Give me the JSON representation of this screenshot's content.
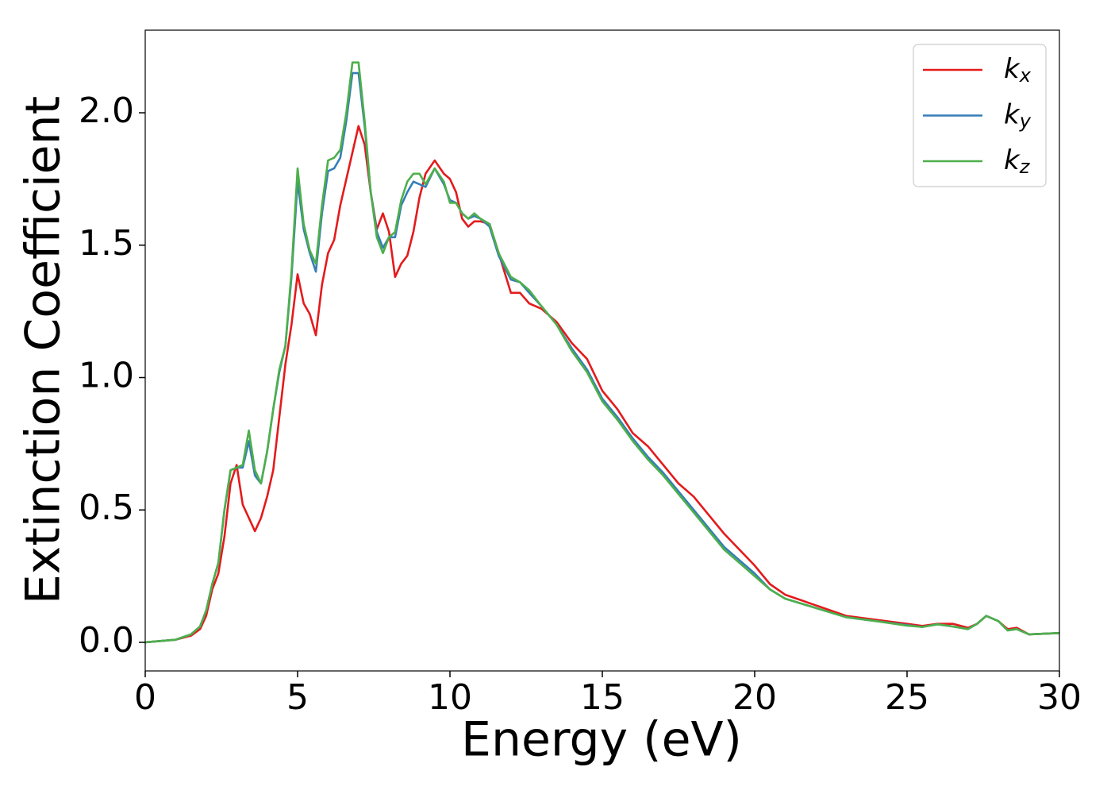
{
  "chart_data": {
    "type": "line",
    "xlabel": "Energy (eV)",
    "ylabel": "Extinction Coefficient",
    "x": [
      0,
      1,
      1.5,
      1.8,
      2,
      2.2,
      2.4,
      2.6,
      2.8,
      3,
      3.2,
      3.4,
      3.6,
      3.8,
      4,
      4.2,
      4.4,
      4.6,
      4.8,
      5,
      5.2,
      5.4,
      5.6,
      5.8,
      6,
      6.2,
      6.4,
      6.6,
      6.8,
      7,
      7.2,
      7.4,
      7.6,
      7.8,
      8,
      8.2,
      8.4,
      8.6,
      8.8,
      9,
      9.2,
      9.5,
      9.8,
      10,
      10.2,
      10.4,
      10.6,
      10.8,
      11,
      11.3,
      11.6,
      12,
      12.3,
      12.6,
      13,
      13.5,
      14,
      14.5,
      15,
      15.5,
      16,
      16.5,
      17,
      17.5,
      18,
      18.5,
      19,
      19.5,
      20,
      20.5,
      21,
      22,
      23,
      24,
      25,
      25.5,
      26,
      26.5,
      27,
      27.3,
      27.6,
      28,
      28.3,
      28.6,
      29,
      30
    ],
    "series": [
      {
        "name": "kx",
        "color": "#e41a1c",
        "values": [
          0,
          0.01,
          0.025,
          0.05,
          0.1,
          0.2,
          0.26,
          0.4,
          0.6,
          0.67,
          0.52,
          0.47,
          0.42,
          0.47,
          0.55,
          0.65,
          0.85,
          1.05,
          1.2,
          1.39,
          1.28,
          1.24,
          1.16,
          1.35,
          1.47,
          1.52,
          1.65,
          1.75,
          1.85,
          1.95,
          1.88,
          1.7,
          1.56,
          1.62,
          1.55,
          1.38,
          1.43,
          1.46,
          1.55,
          1.68,
          1.77,
          1.82,
          1.77,
          1.75,
          1.7,
          1.6,
          1.57,
          1.59,
          1.59,
          1.58,
          1.47,
          1.32,
          1.32,
          1.28,
          1.26,
          1.21,
          1.13,
          1.07,
          0.95,
          0.88,
          0.79,
          0.74,
          0.67,
          0.6,
          0.55,
          0.48,
          0.41,
          0.35,
          0.29,
          0.22,
          0.18,
          0.14,
          0.1,
          0.085,
          0.07,
          0.062,
          0.07,
          0.07,
          0.055,
          0.07,
          0.1,
          0.08,
          0.05,
          0.055,
          0.03,
          0.035
        ]
      },
      {
        "name": "ky",
        "color": "#377eb8",
        "values": [
          0,
          0.01,
          0.03,
          0.06,
          0.12,
          0.22,
          0.3,
          0.5,
          0.65,
          0.66,
          0.66,
          0.76,
          0.63,
          0.6,
          0.72,
          0.88,
          1.02,
          1.12,
          1.38,
          1.74,
          1.56,
          1.47,
          1.4,
          1.62,
          1.78,
          1.79,
          1.83,
          1.97,
          2.15,
          2.15,
          1.95,
          1.7,
          1.55,
          1.49,
          1.53,
          1.53,
          1.65,
          1.7,
          1.74,
          1.73,
          1.72,
          1.79,
          1.73,
          1.67,
          1.66,
          1.62,
          1.6,
          1.61,
          1.6,
          1.57,
          1.46,
          1.37,
          1.36,
          1.32,
          1.27,
          1.2,
          1.11,
          1.03,
          0.92,
          0.85,
          0.77,
          0.7,
          0.64,
          0.57,
          0.5,
          0.43,
          0.36,
          0.31,
          0.26,
          0.2,
          0.165,
          0.13,
          0.095,
          0.08,
          0.065,
          0.058,
          0.068,
          0.06,
          0.05,
          0.07,
          0.1,
          0.08,
          0.045,
          0.05,
          0.03,
          0.035
        ]
      },
      {
        "name": "kz",
        "color": "#4daf4a",
        "values": [
          0,
          0.01,
          0.03,
          0.06,
          0.12,
          0.22,
          0.3,
          0.5,
          0.65,
          0.66,
          0.67,
          0.8,
          0.65,
          0.6,
          0.72,
          0.88,
          1.03,
          1.12,
          1.4,
          1.79,
          1.58,
          1.48,
          1.43,
          1.65,
          1.82,
          1.83,
          1.86,
          2.0,
          2.19,
          2.19,
          1.97,
          1.7,
          1.53,
          1.47,
          1.53,
          1.55,
          1.67,
          1.74,
          1.77,
          1.77,
          1.73,
          1.79,
          1.74,
          1.66,
          1.66,
          1.62,
          1.6,
          1.62,
          1.6,
          1.58,
          1.47,
          1.38,
          1.36,
          1.33,
          1.27,
          1.2,
          1.1,
          1.02,
          0.91,
          0.84,
          0.76,
          0.69,
          0.63,
          0.56,
          0.49,
          0.42,
          0.35,
          0.3,
          0.25,
          0.2,
          0.165,
          0.13,
          0.095,
          0.08,
          0.063,
          0.058,
          0.068,
          0.06,
          0.05,
          0.07,
          0.1,
          0.08,
          0.045,
          0.05,
          0.03,
          0.035
        ]
      }
    ],
    "xlim": [
      0,
      30
    ],
    "xticks": [
      0,
      5,
      10,
      15,
      20,
      25,
      30
    ],
    "ylim": [
      -0.108,
      2.312
    ],
    "yticks": [
      {
        "value": 0,
        "label": "0.0"
      },
      0.5,
      {
        "value": 1,
        "label": "1.0"
      },
      1.5,
      {
        "value": 2,
        "label": "2.0"
      }
    ],
    "grid": false,
    "legend": "upper right"
  }
}
